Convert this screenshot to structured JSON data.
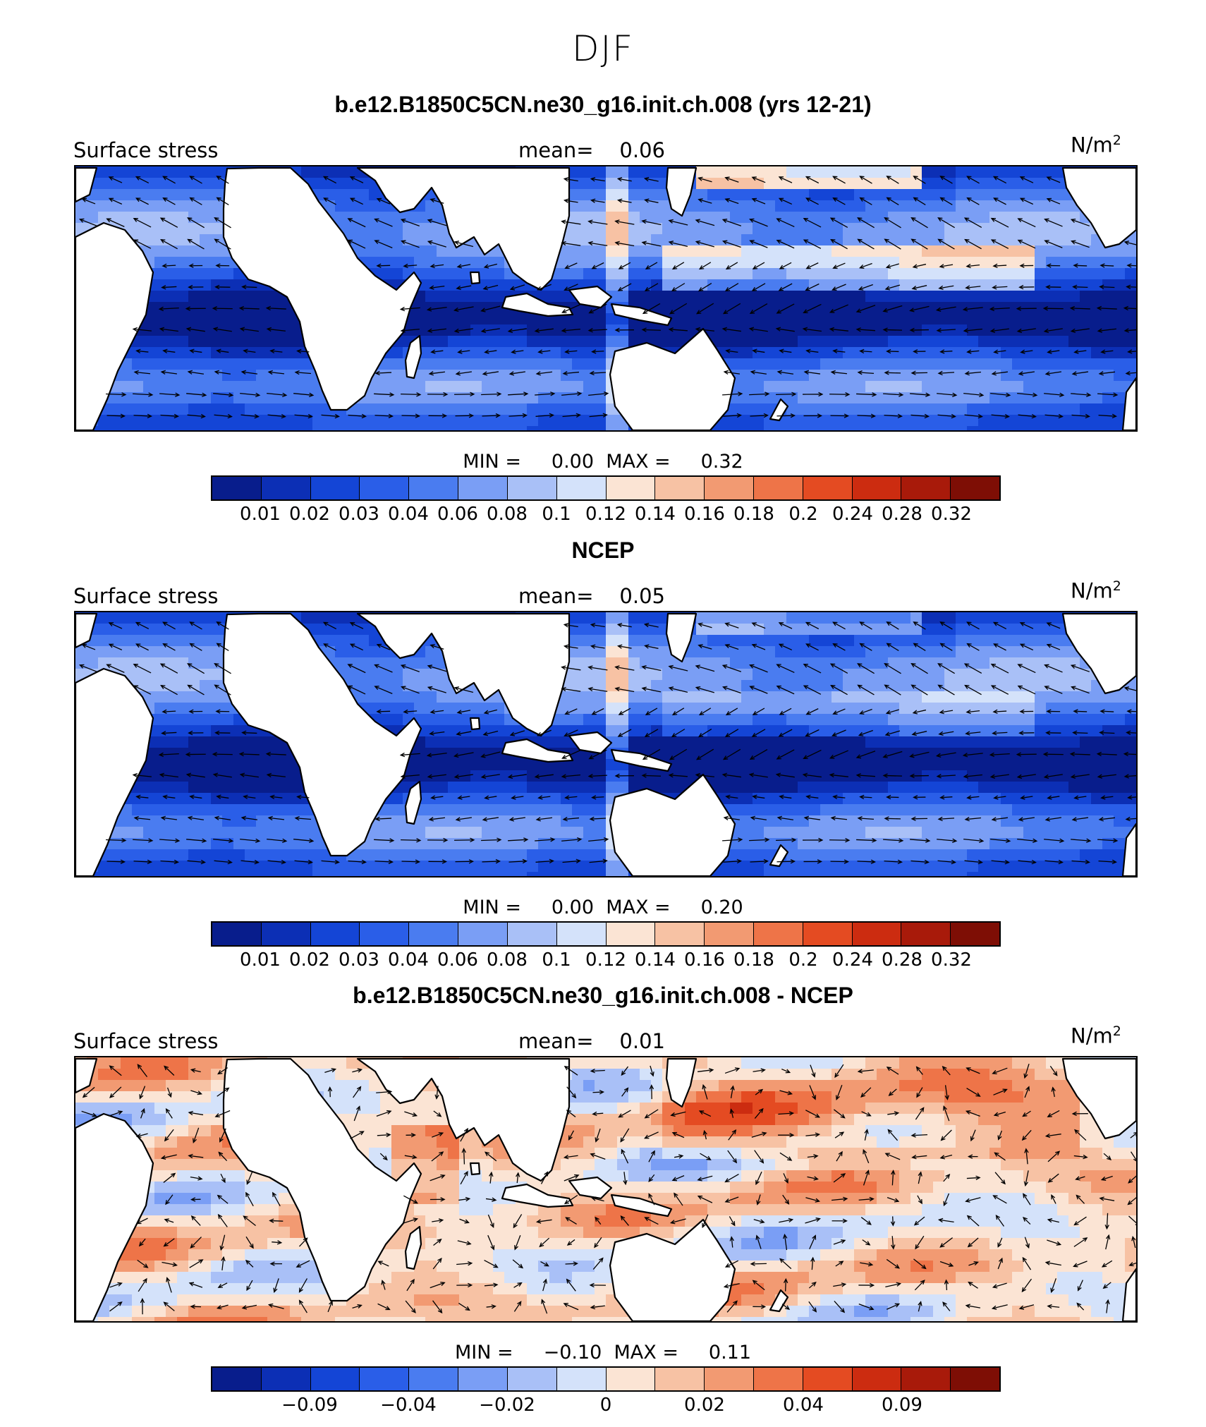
{
  "figure": {
    "title": "DJF"
  },
  "panels": [
    {
      "id": "model",
      "title": "b.e12.B1850C5CN.ne30_g16.init.ch.008 (yrs 12-21)",
      "variable": "Surface stress",
      "mean_label": "mean=",
      "mean_value": "0.06",
      "units": "N/m",
      "units_exp": "2",
      "min_label": "MIN =",
      "min_value": "0.00",
      "max_label": "MAX =",
      "max_value": "0.32",
      "field_style": "model"
    },
    {
      "id": "obs",
      "title": "NCEP",
      "variable": "Surface stress",
      "mean_label": "mean=",
      "mean_value": "0.05",
      "units": "N/m",
      "units_exp": "2",
      "min_label": "MIN =",
      "min_value": "0.00",
      "max_label": "MAX =",
      "max_value": "0.20",
      "field_style": "obs"
    },
    {
      "id": "diff",
      "title": "b.e12.B1850C5CN.ne30_g16.init.ch.008 - NCEP",
      "variable": "Surface stress",
      "mean_label": "mean=",
      "mean_value": "0.01",
      "units": "N/m",
      "units_exp": "2",
      "min_label": "MIN =",
      "min_value": "−0.10",
      "max_label": "MAX =",
      "max_value": "0.11",
      "field_style": "diff"
    }
  ],
  "colorbars": {
    "stress": {
      "colors": [
        "#081d8c",
        "#0c2fb5",
        "#1445d6",
        "#2a5ee8",
        "#4a7cf0",
        "#7a9ef5",
        "#a9c0f7",
        "#d4e2fa",
        "#fbe4d4",
        "#f7c2a4",
        "#f29a72",
        "#ee7448",
        "#e44b22",
        "#cc2c10",
        "#a81a0a",
        "#7e0e05"
      ],
      "ticks": [
        "0.01",
        "0.02",
        "0.03",
        "0.04",
        "0.06",
        "0.08",
        "0.1",
        "0.12",
        "0.14",
        "0.16",
        "0.18",
        "0.2",
        "0.24",
        "0.28",
        "0.32"
      ]
    },
    "diff": {
      "colors": [
        "#081d8c",
        "#0c2fb5",
        "#1445d6",
        "#2a5ee8",
        "#4a7cf0",
        "#7a9ef5",
        "#a9c0f7",
        "#d4e2fa",
        "#fbe4d4",
        "#f7c2a4",
        "#f29a72",
        "#ee7448",
        "#e44b22",
        "#cc2c10",
        "#a81a0a",
        "#7e0e05"
      ],
      "ticks": [
        "",
        "−0.09",
        "",
        "−0.04",
        "",
        "−0.02",
        "",
        "0",
        "",
        "0.02",
        "",
        "0.04",
        "",
        "0.09",
        ""
      ]
    }
  }
}
